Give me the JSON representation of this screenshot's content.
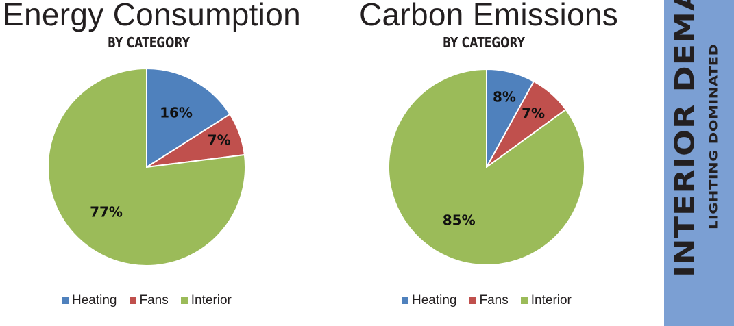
{
  "chart_data": [
    {
      "type": "pie",
      "title": "Energy Consumption",
      "subtitle": "BY CATEGORY",
      "slices": [
        {
          "label": "Heating",
          "value": 16,
          "display": "16%",
          "color": "#4f81bd"
        },
        {
          "label": "Fans",
          "value": 7,
          "display": "7%",
          "color": "#c0504d"
        },
        {
          "label": "Interior",
          "value": 77,
          "display": "77%",
          "color": "#9bbb59"
        }
      ],
      "legend_position": "bottom"
    },
    {
      "type": "pie",
      "title": "Carbon Emissions",
      "subtitle": "BY CATEGORY",
      "slices": [
        {
          "label": "Heating",
          "value": 8,
          "display": "8%",
          "color": "#4f81bd"
        },
        {
          "label": "Fans",
          "value": 7,
          "display": "7%",
          "color": "#c0504d"
        },
        {
          "label": "Interior",
          "value": 85,
          "display": "85%",
          "color": "#9bbb59"
        }
      ],
      "legend_position": "bottom"
    }
  ],
  "sidebar": {
    "heading": "INTERIOR DEMAND",
    "subheading": "LIGHTING DOMINATED",
    "background_color": "#7b9fd3"
  }
}
